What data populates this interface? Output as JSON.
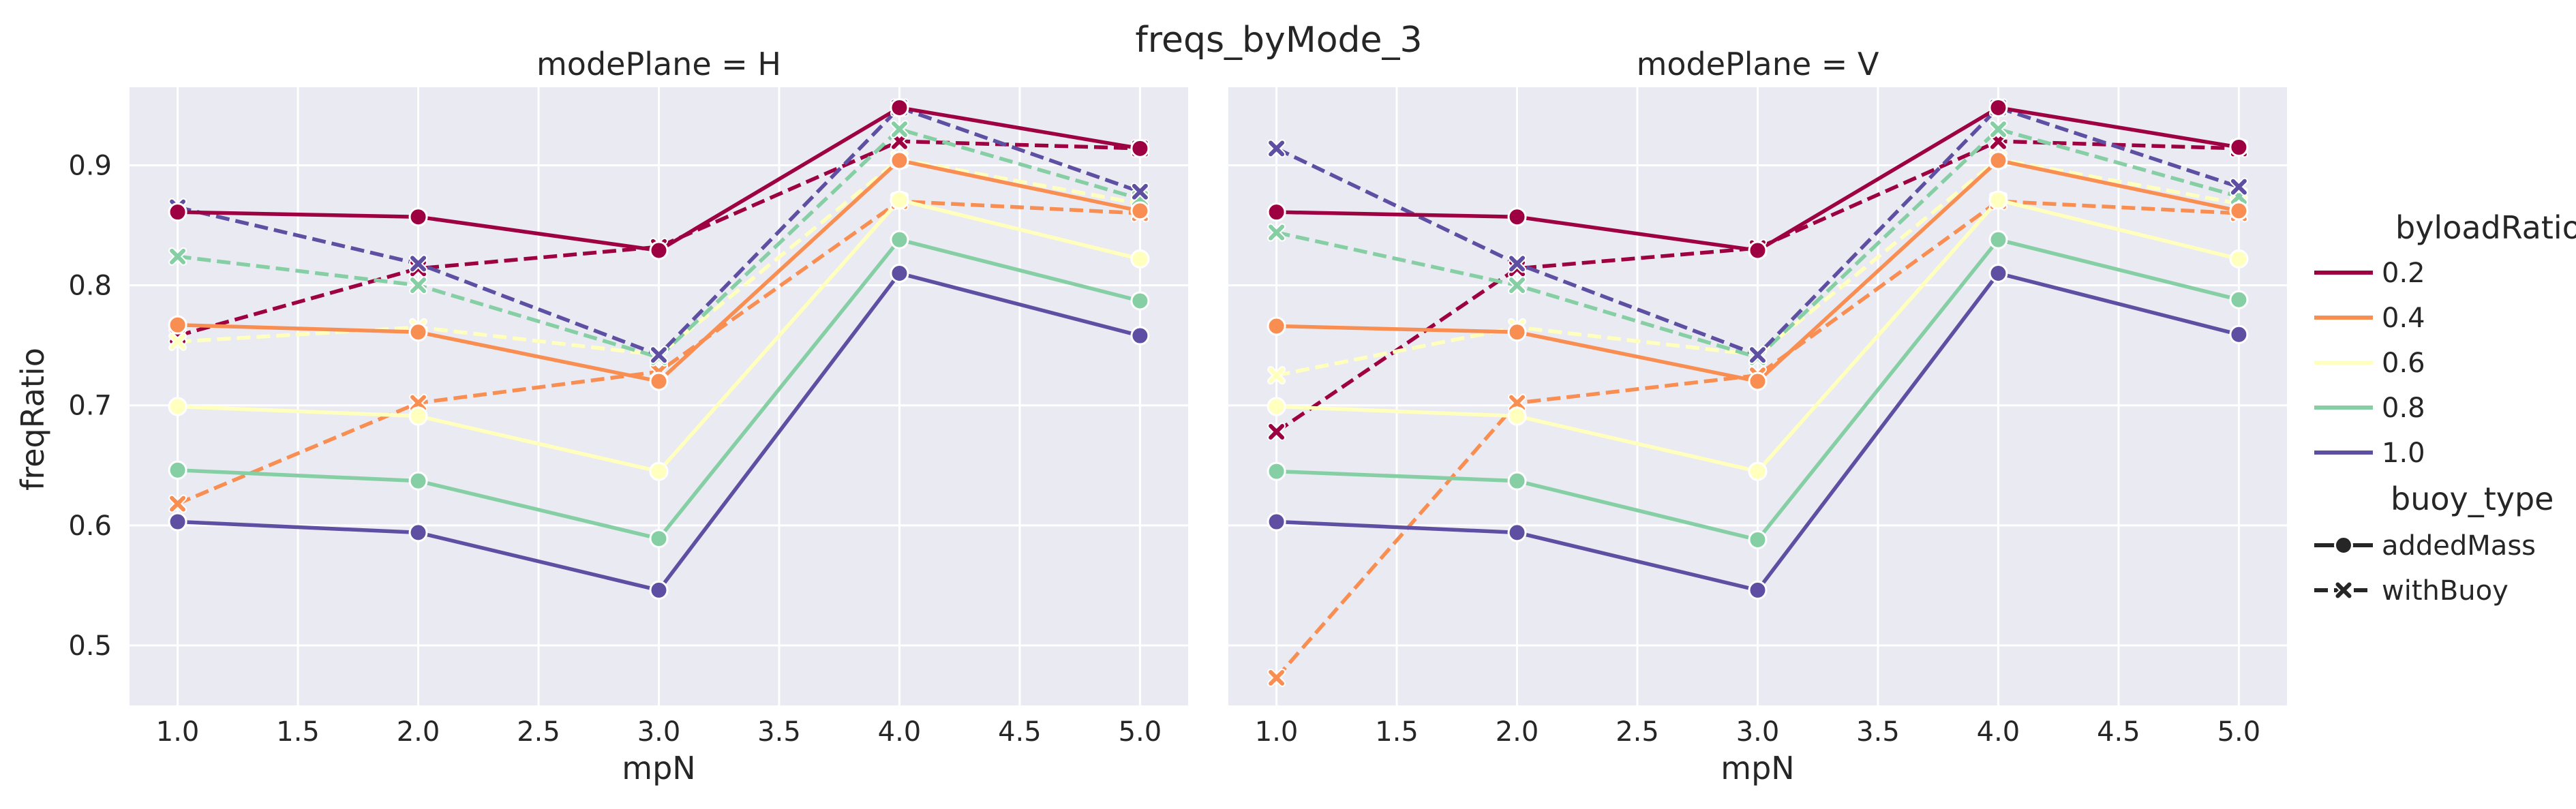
{
  "chart_data": {
    "type": "line",
    "title": "freqs_byMode_3",
    "xlabel": "mpN",
    "ylabel": "freqRatio",
    "xlim": [
      0.8,
      5.2
    ],
    "ylim": [
      0.45,
      0.965
    ],
    "x_ticks": [
      "1.0",
      "1.5",
      "2.0",
      "2.5",
      "3.0",
      "3.5",
      "4.0",
      "4.5",
      "5.0"
    ],
    "x_tick_values": [
      1.0,
      1.5,
      2.0,
      2.5,
      3.0,
      3.5,
      4.0,
      4.5,
      5.0
    ],
    "y_ticks": [
      "0.5",
      "0.6",
      "0.7",
      "0.8",
      "0.9"
    ],
    "y_tick_values": [
      0.5,
      0.6,
      0.7,
      0.8,
      0.9
    ],
    "x": [
      1.0,
      2.0,
      3.0,
      4.0,
      5.0
    ],
    "legend": {
      "hue_title": "byloadRatio",
      "hue_entries": [
        {
          "label": "0.2",
          "color": "#9e0142"
        },
        {
          "label": "0.4",
          "color": "#f98e52"
        },
        {
          "label": "0.6",
          "color": "#ffffbe"
        },
        {
          "label": "0.8",
          "color": "#86cfa5"
        },
        {
          "label": "1.0",
          "color": "#5e4fa2"
        }
      ],
      "style_title": "buoy_type",
      "style_entries": [
        {
          "label": "addedMass",
          "dash": "solid",
          "marker": "circle"
        },
        {
          "label": "withBuoy",
          "dash": "dashed",
          "marker": "x"
        }
      ]
    },
    "panels": [
      {
        "title": "modePlane = H",
        "series": [
          {
            "byloadRatio": "0.2",
            "buoy_type": "addedMass",
            "values": [
              0.861,
              0.857,
              0.829,
              0.948,
              0.914
            ]
          },
          {
            "byloadRatio": "0.4",
            "buoy_type": "addedMass",
            "values": [
              0.767,
              0.761,
              0.72,
              0.904,
              0.862
            ]
          },
          {
            "byloadRatio": "0.6",
            "buoy_type": "addedMass",
            "values": [
              0.699,
              0.691,
              0.645,
              0.871,
              0.822
            ]
          },
          {
            "byloadRatio": "0.8",
            "buoy_type": "addedMass",
            "values": [
              0.646,
              0.637,
              0.589,
              0.838,
              0.787
            ]
          },
          {
            "byloadRatio": "1.0",
            "buoy_type": "addedMass",
            "values": [
              0.603,
              0.594,
              0.546,
              0.81,
              0.758
            ]
          },
          {
            "byloadRatio": "0.2",
            "buoy_type": "withBuoy",
            "values": [
              0.758,
              0.814,
              0.832,
              0.92,
              0.914
            ]
          },
          {
            "byloadRatio": "0.4",
            "buoy_type": "withBuoy",
            "values": [
              0.618,
              0.702,
              0.728,
              0.87,
              0.86
            ]
          },
          {
            "byloadRatio": "0.6",
            "buoy_type": "withBuoy",
            "values": [
              0.753,
              0.765,
              0.742,
              0.905,
              0.868
            ]
          },
          {
            "byloadRatio": "0.8",
            "buoy_type": "withBuoy",
            "values": [
              0.824,
              0.8,
              0.74,
              0.93,
              0.872
            ]
          },
          {
            "byloadRatio": "1.0",
            "buoy_type": "withBuoy",
            "values": [
              0.865,
              0.818,
              0.742,
              0.948,
              0.878
            ]
          }
        ]
      },
      {
        "title": "modePlane = V",
        "series": [
          {
            "byloadRatio": "0.2",
            "buoy_type": "addedMass",
            "values": [
              0.861,
              0.857,
              0.829,
              0.948,
              0.915
            ]
          },
          {
            "byloadRatio": "0.4",
            "buoy_type": "addedMass",
            "values": [
              0.766,
              0.761,
              0.72,
              0.904,
              0.862
            ]
          },
          {
            "byloadRatio": "0.6",
            "buoy_type": "addedMass",
            "values": [
              0.699,
              0.691,
              0.645,
              0.871,
              0.822
            ]
          },
          {
            "byloadRatio": "0.8",
            "buoy_type": "addedMass",
            "values": [
              0.645,
              0.637,
              0.588,
              0.838,
              0.788
            ]
          },
          {
            "byloadRatio": "1.0",
            "buoy_type": "addedMass",
            "values": [
              0.603,
              0.594,
              0.546,
              0.81,
              0.759
            ]
          },
          {
            "byloadRatio": "0.2",
            "buoy_type": "withBuoy",
            "values": [
              0.678,
              0.814,
              0.831,
              0.92,
              0.914
            ]
          },
          {
            "byloadRatio": "0.4",
            "buoy_type": "withBuoy",
            "values": [
              0.473,
              0.702,
              0.725,
              0.87,
              0.86
            ]
          },
          {
            "byloadRatio": "0.6",
            "buoy_type": "withBuoy",
            "values": [
              0.725,
              0.765,
              0.742,
              0.905,
              0.868
            ]
          },
          {
            "byloadRatio": "0.8",
            "buoy_type": "withBuoy",
            "values": [
              0.844,
              0.8,
              0.74,
              0.93,
              0.874
            ]
          },
          {
            "byloadRatio": "1.0",
            "buoy_type": "withBuoy",
            "values": [
              0.914,
              0.818,
              0.742,
              0.948,
              0.882
            ]
          }
        ]
      }
    ]
  }
}
